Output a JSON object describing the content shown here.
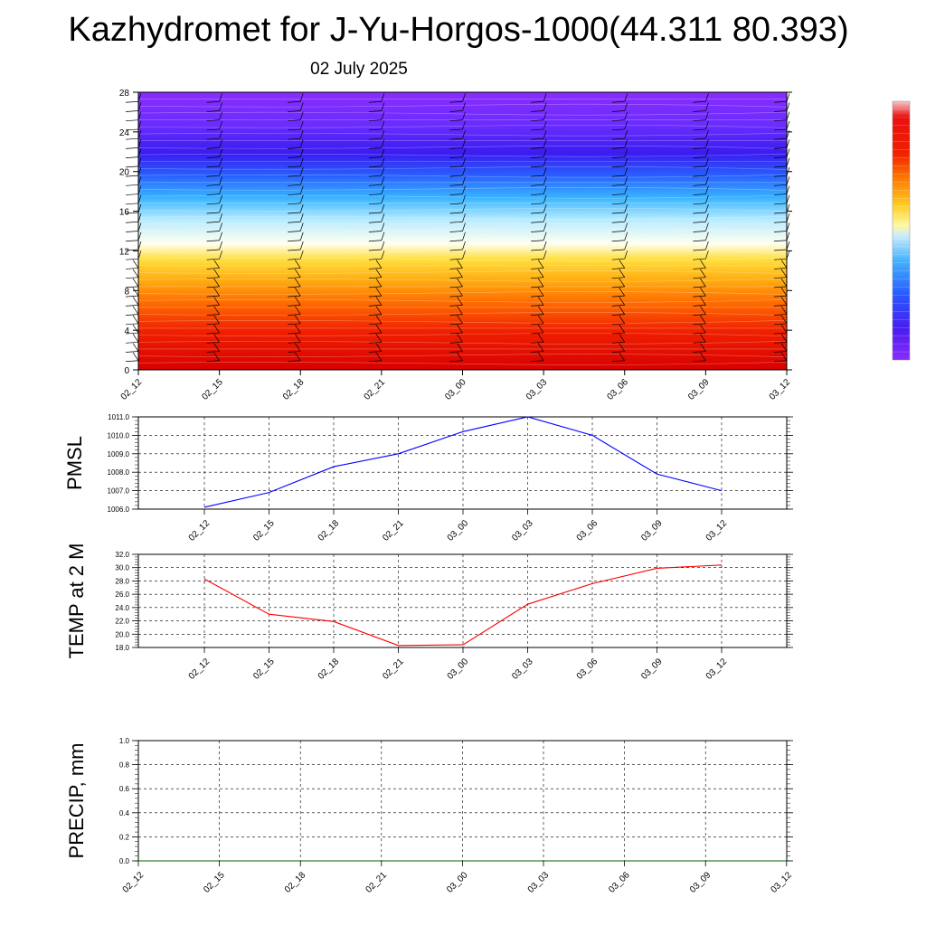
{
  "header": {
    "title": "Kazhydromet for J-Yu-Horgos-1000(44.311 80.393)",
    "date": "02 July 2025"
  },
  "colors": {
    "pmsl_line": "#0000ff",
    "temp_line": "#ff0000",
    "precip_line": "#006400",
    "grid": "#000000"
  },
  "chart_data": [
    {
      "id": "cross_section",
      "type": "heatmap",
      "title": "",
      "xlabel": "",
      "ylabel": "",
      "x_tick_labels": [
        "02_12",
        "02_15",
        "02_18",
        "02_21",
        "03_00",
        "03_03",
        "03_06",
        "03_09",
        "03_12"
      ],
      "y_ticks": [
        0,
        4,
        8,
        12,
        16,
        20,
        24,
        28
      ],
      "ylim": [
        0,
        28
      ],
      "colorbar": true,
      "wind_barbs": true
    },
    {
      "id": "pmsl",
      "type": "line",
      "ylabel": "PMSL",
      "categories": [
        "02_12",
        "02_15",
        "02_18",
        "02_21",
        "03_00",
        "03_03",
        "03_06",
        "03_09",
        "03_12"
      ],
      "values": [
        1006.1,
        1006.9,
        1008.3,
        1009.0,
        1010.2,
        1011.0,
        1010.0,
        1007.9,
        1007.0
      ],
      "ylim": [
        1006.0,
        1011.0
      ],
      "y_ticks": [
        "1006.0",
        "1007.0",
        "1008.0",
        "1009.0",
        "1010.0",
        "1011.0"
      ],
      "grid": true
    },
    {
      "id": "temp",
      "type": "line",
      "ylabel": "TEMP at 2 M",
      "categories": [
        "02_12",
        "02_15",
        "02_18",
        "02_21",
        "03_00",
        "03_03",
        "03_06",
        "03_09",
        "03_12"
      ],
      "values": [
        28.3,
        23.0,
        21.9,
        18.3,
        18.4,
        24.5,
        27.6,
        29.9,
        30.4
      ],
      "ylim": [
        18.0,
        32.0
      ],
      "y_ticks": [
        "18.0",
        "20.0",
        "22.0",
        "24.0",
        "26.0",
        "28.0",
        "30.0",
        "32.0"
      ],
      "grid": true
    },
    {
      "id": "precip",
      "type": "line",
      "ylabel": "PRECIP, mm",
      "categories": [
        "02_12",
        "02_15",
        "02_18",
        "02_21",
        "03_00",
        "03_03",
        "03_06",
        "03_09",
        "03_12"
      ],
      "values": [
        0,
        0,
        0,
        0,
        0,
        0,
        0,
        0,
        0
      ],
      "ylim": [
        0.0,
        1.0
      ],
      "y_ticks": [
        "0.0",
        "0.2",
        "0.4",
        "0.6",
        "0.8",
        "1.0"
      ],
      "grid": true
    }
  ]
}
